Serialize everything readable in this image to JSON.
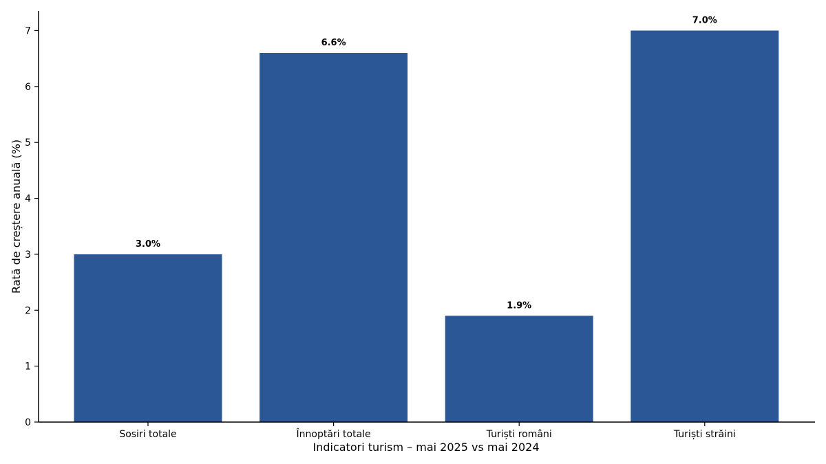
{
  "chart_data": {
    "type": "bar",
    "title": "",
    "xlabel": "Indicatori turism – mai 2025 vs mai 2024",
    "ylabel": "Rată de creștere anuală (%)",
    "categories": [
      "Sosiri totale",
      "Înnoptări totale",
      "Turiști români",
      "Turiști străini"
    ],
    "values": [
      3.0,
      6.6,
      1.9,
      7.0
    ],
    "value_labels": [
      "3.0%",
      "6.6%",
      "1.9%",
      "7.0%"
    ],
    "ylim": [
      0,
      7.35
    ],
    "yticks": [
      0,
      1,
      2,
      3,
      4,
      5,
      6,
      7
    ],
    "bar_color": "#2b5797",
    "grid": false,
    "legend": "none"
  }
}
